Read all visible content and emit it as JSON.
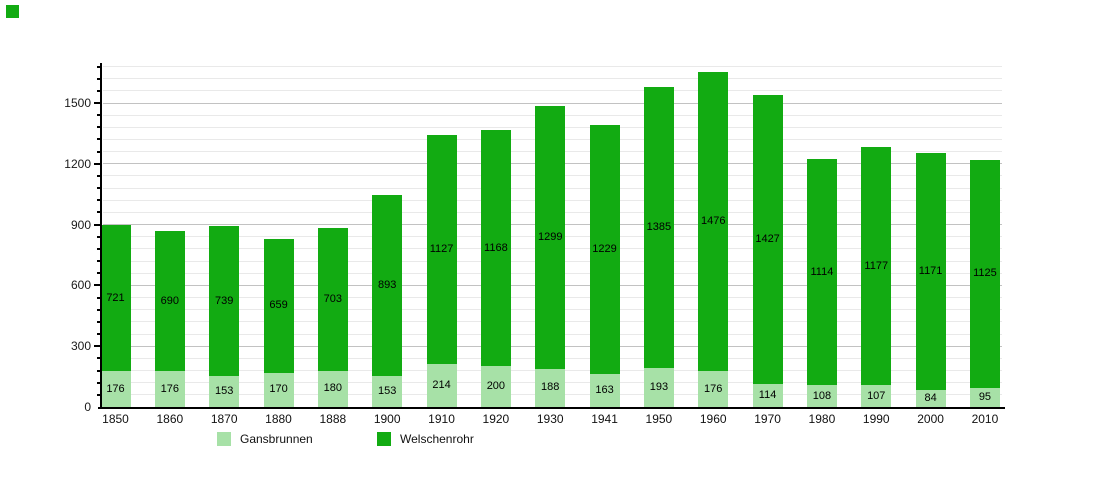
{
  "corner_swatch": {
    "color": "#12ab12"
  },
  "chart_data": {
    "type": "bar",
    "stacked": true,
    "title": "",
    "xlabel": "",
    "ylabel": "",
    "categories": [
      "1850",
      "1860",
      "1870",
      "1880",
      "1888",
      "1900",
      "1910",
      "1920",
      "1930",
      "1941",
      "1950",
      "1960",
      "1970",
      "1980",
      "1990",
      "2000",
      "2010"
    ],
    "series": [
      {
        "name": "Gansbrunnen",
        "color": "#a7e1a7",
        "values": [
          176,
          176,
          153,
          170,
          180,
          153,
          214,
          200,
          188,
          163,
          193,
          176,
          114,
          108,
          107,
          84,
          95
        ]
      },
      {
        "name": "Welschenrohr",
        "color": "#12ab12",
        "values": [
          721,
          690,
          739,
          659,
          703,
          893,
          1127,
          1168,
          1299,
          1229,
          1385,
          1476,
          1427,
          1114,
          1177,
          1171,
          1125
        ]
      }
    ],
    "ylim": [
      0,
      1680
    ],
    "yticks": [
      0,
      300,
      600,
      900,
      1200,
      1500
    ],
    "minor_tick_step": 60,
    "grid": true,
    "bar_value_labels": true,
    "legend_position": "bottom",
    "axis_color": "#000000",
    "value_label_color": "#000000",
    "grid_major_color": "#c2c2c2",
    "grid_minor_color": "#e9e9e9"
  }
}
